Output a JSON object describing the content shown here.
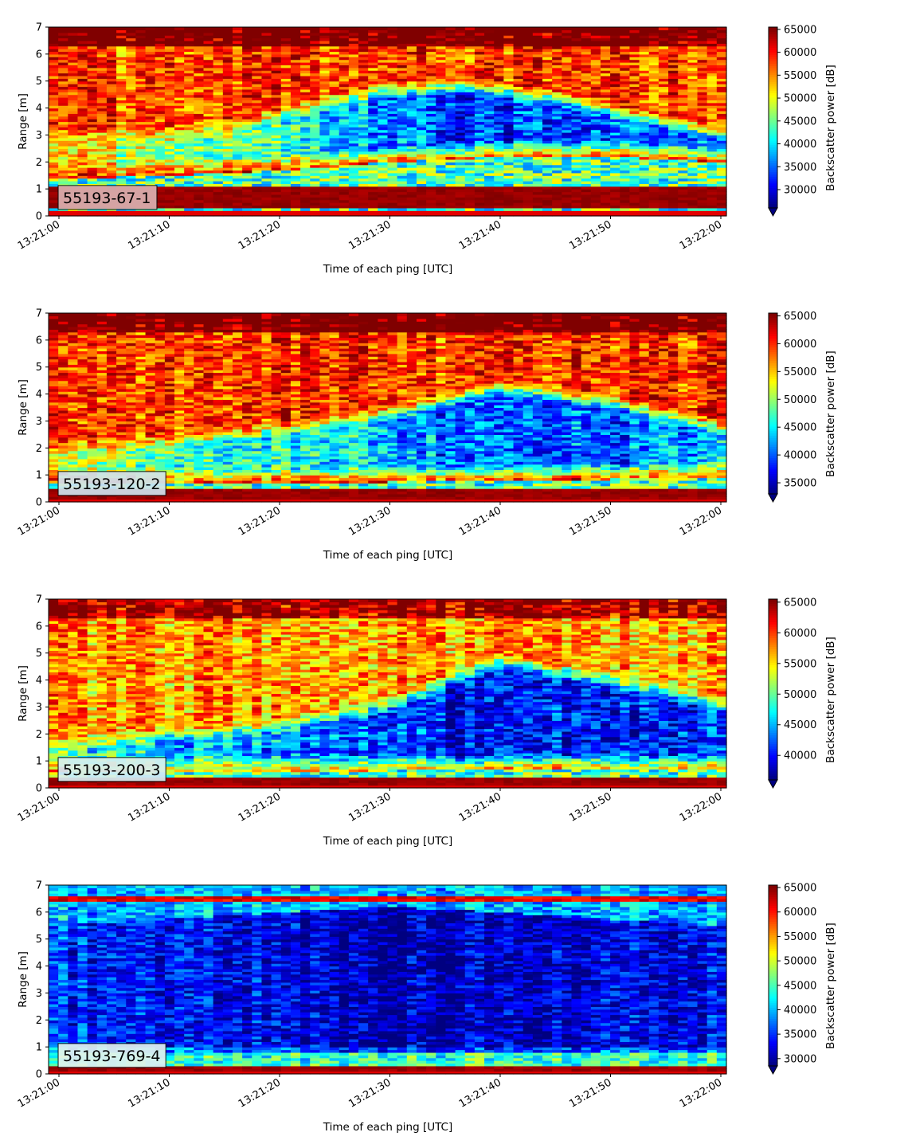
{
  "chart_data": [
    {
      "type": "heatmap",
      "label": "55193-67-1",
      "label_bg": "#dbb1b1",
      "xlabel": "Time of each ping [UTC]",
      "ylabel": "Range [m]",
      "x_ticks": [
        "13:21:00",
        "13:21:10",
        "13:21:20",
        "13:21:30",
        "13:21:40",
        "13:21:50",
        "13:22:00"
      ],
      "y_ticks": [
        0,
        1,
        2,
        3,
        4,
        5,
        6,
        7
      ],
      "ylim": [
        0,
        7
      ],
      "colorbar_label": "Backscatter power [dB]",
      "colorbar_ticks": [
        30000,
        35000,
        40000,
        45000,
        50000,
        55000,
        60000,
        65000
      ],
      "clim": [
        26000,
        65500
      ],
      "profile": {
        "bottom_band": [
          0.25,
          1.15
        ],
        "layer_top": [
          [
            0,
            3.4
          ],
          [
            10,
            3.4
          ],
          [
            15,
            3.6
          ],
          [
            22,
            4.3
          ],
          [
            30,
            5.0
          ],
          [
            38,
            5.1
          ],
          [
            45,
            4.7
          ],
          [
            52,
            4.0
          ],
          [
            60,
            3.4
          ]
        ],
        "layer_bottom": [
          [
            0,
            1.4
          ],
          [
            10,
            1.5
          ],
          [
            20,
            1.7
          ],
          [
            30,
            2.0
          ],
          [
            40,
            2.2
          ],
          [
            50,
            2.2
          ],
          [
            60,
            2.0
          ]
        ],
        "layer_strength": [
          [
            0,
            0.25
          ],
          [
            10,
            0.35
          ],
          [
            20,
            0.55
          ],
          [
            30,
            0.75
          ],
          [
            40,
            0.9
          ],
          [
            50,
            0.8
          ],
          [
            60,
            0.7
          ]
        ],
        "background": "high"
      }
    },
    {
      "type": "heatmap",
      "label": "55193-120-2",
      "label_bg": "#cfe3ee",
      "xlabel": "Time of each ping [UTC]",
      "ylabel": "Range [m]",
      "x_ticks": [
        "13:21:00",
        "13:21:10",
        "13:21:20",
        "13:21:30",
        "13:21:40",
        "13:21:50",
        "13:22:00"
      ],
      "y_ticks": [
        0,
        1,
        2,
        3,
        4,
        5,
        6,
        7
      ],
      "ylim": [
        0,
        7
      ],
      "colorbar_label": "Backscatter power [dB]",
      "colorbar_ticks": [
        35000,
        40000,
        45000,
        50000,
        55000,
        60000,
        65000
      ],
      "clim": [
        33000,
        65500
      ],
      "profile": {
        "bottom_band": [
          0.1,
          0.55
        ],
        "layer_top": [
          [
            0,
            2.3
          ],
          [
            10,
            2.6
          ],
          [
            20,
            3.0
          ],
          [
            30,
            3.6
          ],
          [
            40,
            4.6
          ],
          [
            50,
            4.0
          ],
          [
            60,
            3.1
          ]
        ],
        "layer_bottom": [
          [
            0,
            0.7
          ],
          [
            20,
            0.7
          ],
          [
            40,
            0.8
          ],
          [
            60,
            0.9
          ]
        ],
        "layer_strength": [
          [
            0,
            0.3
          ],
          [
            10,
            0.5
          ],
          [
            20,
            0.6
          ],
          [
            30,
            0.7
          ],
          [
            40,
            0.85
          ],
          [
            50,
            0.8
          ],
          [
            60,
            0.7
          ]
        ],
        "background": "high"
      }
    },
    {
      "type": "heatmap",
      "label": "55193-200-3",
      "label_bg": "#d6eef3",
      "xlabel": "Time of each ping [UTC]",
      "ylabel": "Range [m]",
      "x_ticks": [
        "13:21:00",
        "13:21:10",
        "13:21:20",
        "13:21:30",
        "13:21:40",
        "13:21:50",
        "13:22:00"
      ],
      "y_ticks": [
        0,
        1,
        2,
        3,
        4,
        5,
        6,
        7
      ],
      "ylim": [
        0,
        7
      ],
      "colorbar_label": "Backscatter power [dB]",
      "colorbar_ticks": [
        40000,
        45000,
        50000,
        55000,
        60000,
        65000
      ],
      "clim": [
        36000,
        65500
      ],
      "profile": {
        "bottom_band": [
          0.1,
          0.4
        ],
        "layer_top": [
          [
            0,
            2.0
          ],
          [
            10,
            2.3
          ],
          [
            20,
            2.6
          ],
          [
            30,
            3.4
          ],
          [
            40,
            5.0
          ],
          [
            50,
            4.3
          ],
          [
            60,
            3.4
          ]
        ],
        "layer_bottom": [
          [
            0,
            0.6
          ],
          [
            20,
            0.6
          ],
          [
            40,
            0.7
          ],
          [
            60,
            0.7
          ]
        ],
        "layer_strength": [
          [
            0,
            0.35
          ],
          [
            10,
            0.55
          ],
          [
            20,
            0.6
          ],
          [
            30,
            0.7
          ],
          [
            40,
            0.85
          ],
          [
            50,
            0.75
          ],
          [
            60,
            0.7
          ]
        ],
        "background": "mid-high"
      }
    },
    {
      "type": "heatmap",
      "label": "55193-769-4",
      "label_bg": "#e2f3ee",
      "xlabel": "Time of each ping [UTC]",
      "ylabel": "Range [m]",
      "x_ticks": [
        "13:21:00",
        "13:21:10",
        "13:21:20",
        "13:21:30",
        "13:21:40",
        "13:21:50",
        "13:22:00"
      ],
      "y_ticks": [
        0,
        1,
        2,
        3,
        4,
        5,
        6,
        7
      ],
      "ylim": [
        0,
        7
      ],
      "colorbar_label": "Backscatter power [dB]",
      "colorbar_ticks": [
        30000,
        35000,
        40000,
        45000,
        50000,
        55000,
        60000,
        65000
      ],
      "clim": [
        28500,
        65500
      ],
      "profile": {
        "bottom_band": [
          0.1,
          0.35
        ],
        "surface_band": [
          6.35,
          6.6
        ],
        "layer_top": [
          [
            0,
            5.5
          ],
          [
            20,
            6.0
          ],
          [
            30,
            6.2
          ],
          [
            40,
            6.0
          ],
          [
            60,
            5.5
          ]
        ],
        "layer_bottom": [
          [
            0,
            0.8
          ],
          [
            60,
            0.8
          ]
        ],
        "layer_strength": [
          [
            0,
            0.35
          ],
          [
            15,
            0.5
          ],
          [
            30,
            0.75
          ],
          [
            40,
            0.7
          ],
          [
            50,
            0.55
          ],
          [
            60,
            0.5
          ]
        ],
        "background": "low"
      }
    }
  ]
}
